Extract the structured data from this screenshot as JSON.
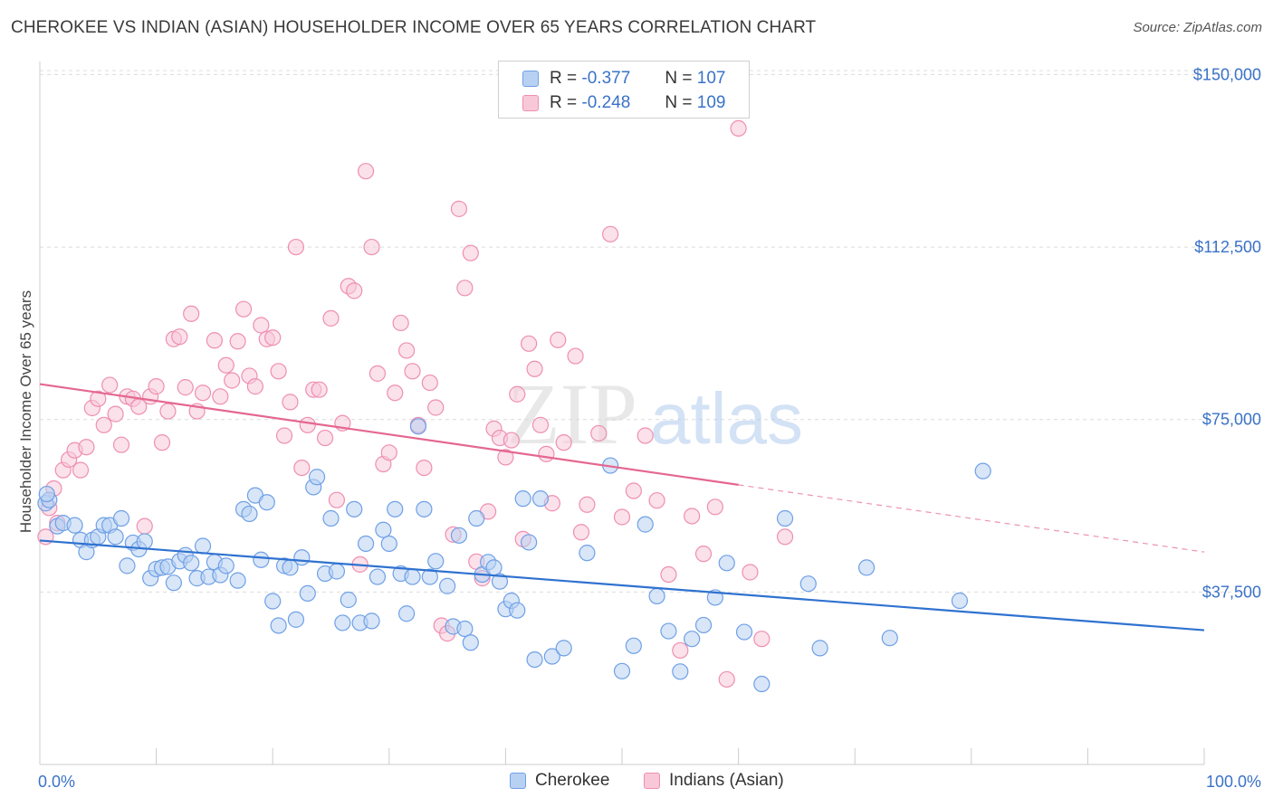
{
  "title": "CHEROKEE VS INDIAN (ASIAN) HOUSEHOLDER INCOME OVER 65 YEARS CORRELATION CHART",
  "source": "Source: ZipAtlas.com",
  "watermark": {
    "zip": "ZIP",
    "atlas": "atlas"
  },
  "legend": {
    "r_label": "R =",
    "n_label": "N =",
    "items": [
      {
        "name": "Cherokee",
        "r": "-0.377",
        "n": "107",
        "color": "#6fa0e6",
        "fill": "#b8d1f3"
      },
      {
        "name": "Indians (Asian)",
        "r": "-0.248",
        "n": "109",
        "color": "#ee8fb1",
        "fill": "#f8c8d8"
      }
    ]
  },
  "chart_data": {
    "type": "scatter",
    "title": "CHEROKEE VS INDIAN (ASIAN) HOUSEHOLDER INCOME OVER 65 YEARS CORRELATION CHART",
    "xlabel": "",
    "ylabel": "Householder Income Over 65 years",
    "xlim": [
      0,
      100
    ],
    "ylim": [
      0,
      155000
    ],
    "x_tick_labels": [
      "0.0%",
      "100.0%"
    ],
    "y_ticks": [
      37500,
      75000,
      112500,
      150000
    ],
    "y_tick_labels": [
      "$37,500",
      "$75,000",
      "$112,500",
      "$150,000"
    ],
    "grid": "horizontal dashed",
    "legend_position": "top-center",
    "series": [
      {
        "name": "Cherokee",
        "color": "#6fa0e6",
        "trend": {
          "x": [
            0,
            100
          ],
          "y": [
            48700,
            29200
          ],
          "style": "solid"
        },
        "points": [
          [
            0.5,
            56800
          ],
          [
            1.5,
            51800
          ],
          [
            2,
            52500
          ],
          [
            3,
            52000
          ],
          [
            3.5,
            48800
          ],
          [
            4,
            46200
          ],
          [
            4.5,
            48800
          ],
          [
            5,
            49500
          ],
          [
            5.5,
            52000
          ],
          [
            6,
            52000
          ],
          [
            6.5,
            49500
          ],
          [
            7,
            53500
          ],
          [
            7.5,
            43200
          ],
          [
            8,
            48200
          ],
          [
            8.5,
            46800
          ],
          [
            9,
            48500
          ],
          [
            9.5,
            40500
          ],
          [
            10,
            42500
          ],
          [
            10.5,
            42800
          ],
          [
            11,
            43000
          ],
          [
            11.5,
            39500
          ],
          [
            12,
            44200
          ],
          [
            12.5,
            45500
          ],
          [
            13,
            43800
          ],
          [
            13.5,
            40500
          ],
          [
            14,
            47500
          ],
          [
            14.5,
            40800
          ],
          [
            15,
            44000
          ],
          [
            15.5,
            41200
          ],
          [
            16,
            43200
          ],
          [
            17,
            40000
          ],
          [
            17.5,
            55500
          ],
          [
            18,
            54500
          ],
          [
            18.5,
            58500
          ],
          [
            19,
            44500
          ],
          [
            19.5,
            57000
          ],
          [
            20,
            35500
          ],
          [
            20.5,
            30200
          ],
          [
            21,
            43200
          ],
          [
            21.5,
            42800
          ],
          [
            22,
            31500
          ],
          [
            22.5,
            45000
          ],
          [
            23,
            37200
          ],
          [
            23.5,
            60300
          ],
          [
            23.8,
            62500
          ],
          [
            24.5,
            41500
          ],
          [
            25,
            53500
          ],
          [
            25.5,
            42000
          ],
          [
            26,
            30800
          ],
          [
            26.5,
            35800
          ],
          [
            27,
            55500
          ],
          [
            27.5,
            30800
          ],
          [
            28,
            48000
          ],
          [
            28.5,
            31200
          ],
          [
            29,
            40800
          ],
          [
            29.5,
            51000
          ],
          [
            30,
            48000
          ],
          [
            30.5,
            55500
          ],
          [
            31,
            41500
          ],
          [
            31.5,
            32800
          ],
          [
            32,
            40800
          ],
          [
            32.5,
            73500
          ],
          [
            33,
            55500
          ],
          [
            33.5,
            40800
          ],
          [
            34,
            44200
          ],
          [
            35,
            38800
          ],
          [
            35.5,
            30000
          ],
          [
            36,
            49800
          ],
          [
            36.5,
            29500
          ],
          [
            37,
            26500
          ],
          [
            37.5,
            53500
          ],
          [
            38,
            41300
          ],
          [
            38.5,
            44000
          ],
          [
            39,
            42800
          ],
          [
            39.5,
            39800
          ],
          [
            40,
            33800
          ],
          [
            40.5,
            35600
          ],
          [
            41,
            33500
          ],
          [
            41.5,
            57800
          ],
          [
            42,
            48300
          ],
          [
            42.5,
            22800
          ],
          [
            43,
            57800
          ],
          [
            44,
            23500
          ],
          [
            45,
            25300
          ],
          [
            47,
            46000
          ],
          [
            49,
            65000
          ],
          [
            50,
            20300
          ],
          [
            51,
            25800
          ],
          [
            52,
            52200
          ],
          [
            53,
            36600
          ],
          [
            54,
            29000
          ],
          [
            55,
            20200
          ],
          [
            56,
            27300
          ],
          [
            57,
            30300
          ],
          [
            58,
            36300
          ],
          [
            59,
            43800
          ],
          [
            60.5,
            28800
          ],
          [
            62,
            17500
          ],
          [
            64,
            53500
          ],
          [
            66,
            39300
          ],
          [
            67,
            25300
          ],
          [
            71,
            42800
          ],
          [
            73,
            27500
          ],
          [
            79,
            35600
          ],
          [
            81,
            63800
          ],
          [
            0.8,
            57500
          ],
          [
            0.6,
            58800
          ]
        ]
      },
      {
        "name": "Indians (Asian)",
        "color": "#ee8fb1",
        "trend": {
          "x": [
            0,
            60
          ],
          "y": [
            82700,
            60800
          ],
          "style": "solid",
          "dashed_to": [
            100,
            46200
          ]
        },
        "points": [
          [
            0.5,
            49500
          ],
          [
            0.8,
            55800
          ],
          [
            1.2,
            60000
          ],
          [
            1.5,
            52500
          ],
          [
            2,
            64000
          ],
          [
            2.5,
            66300
          ],
          [
            3,
            68300
          ],
          [
            3.5,
            64000
          ],
          [
            4,
            69000
          ],
          [
            4.5,
            77500
          ],
          [
            5,
            79500
          ],
          [
            5.5,
            73800
          ],
          [
            6,
            82500
          ],
          [
            6.5,
            76200
          ],
          [
            7,
            69500
          ],
          [
            7.5,
            80000
          ],
          [
            8,
            79500
          ],
          [
            8.5,
            77800
          ],
          [
            9,
            51800
          ],
          [
            9.5,
            80000
          ],
          [
            10,
            82200
          ],
          [
            10.5,
            70000
          ],
          [
            11,
            76800
          ],
          [
            11.5,
            92500
          ],
          [
            12,
            93000
          ],
          [
            12.5,
            82000
          ],
          [
            13,
            98000
          ],
          [
            13.5,
            76800
          ],
          [
            14,
            80800
          ],
          [
            15,
            92200
          ],
          [
            15.5,
            80000
          ],
          [
            16,
            86800
          ],
          [
            16.5,
            83500
          ],
          [
            17,
            92000
          ],
          [
            17.5,
            99000
          ],
          [
            18,
            84500
          ],
          [
            18.5,
            82200
          ],
          [
            19,
            95500
          ],
          [
            19.5,
            92500
          ],
          [
            20,
            92800
          ],
          [
            20.5,
            85500
          ],
          [
            21,
            71500
          ],
          [
            21.5,
            78800
          ],
          [
            22,
            112500
          ],
          [
            22.5,
            64500
          ],
          [
            23,
            73800
          ],
          [
            23.5,
            81500
          ],
          [
            24,
            81500
          ],
          [
            24.5,
            71000
          ],
          [
            25,
            97000
          ],
          [
            25.5,
            57500
          ],
          [
            26,
            74200
          ],
          [
            26.5,
            104000
          ],
          [
            27,
            103000
          ],
          [
            27.5,
            43500
          ],
          [
            28,
            129000
          ],
          [
            28.5,
            112500
          ],
          [
            29,
            85000
          ],
          [
            29.5,
            65300
          ],
          [
            30,
            67800
          ],
          [
            30.5,
            80800
          ],
          [
            31,
            96000
          ],
          [
            31.5,
            90000
          ],
          [
            32,
            85500
          ],
          [
            32.5,
            73800
          ],
          [
            33,
            64500
          ],
          [
            33.5,
            83000
          ],
          [
            34,
            77600
          ],
          [
            34.5,
            30200
          ],
          [
            35,
            28500
          ],
          [
            35.5,
            50000
          ],
          [
            36,
            120800
          ],
          [
            36.5,
            103600
          ],
          [
            37,
            111200
          ],
          [
            37.5,
            44100
          ],
          [
            38,
            40500
          ],
          [
            38.5,
            55000
          ],
          [
            39,
            73000
          ],
          [
            39.5,
            71000
          ],
          [
            40,
            66800
          ],
          [
            40.5,
            70500
          ],
          [
            41,
            80500
          ],
          [
            41.5,
            49000
          ],
          [
            42,
            91500
          ],
          [
            42.5,
            86000
          ],
          [
            43,
            73800
          ],
          [
            43.5,
            67500
          ],
          [
            44,
            56800
          ],
          [
            44.5,
            92300
          ],
          [
            45,
            70000
          ],
          [
            46,
            88800
          ],
          [
            46.5,
            50500
          ],
          [
            47,
            56500
          ],
          [
            48,
            72000
          ],
          [
            49,
            115300
          ],
          [
            50,
            53800
          ],
          [
            51,
            59500
          ],
          [
            52,
            71500
          ],
          [
            53,
            57400
          ],
          [
            54,
            41300
          ],
          [
            55,
            24800
          ],
          [
            56,
            54000
          ],
          [
            57,
            45800
          ],
          [
            58,
            56000
          ],
          [
            59,
            18500
          ],
          [
            60,
            138300
          ],
          [
            61,
            41800
          ],
          [
            62,
            27300
          ],
          [
            64,
            49500
          ]
        ]
      }
    ]
  }
}
